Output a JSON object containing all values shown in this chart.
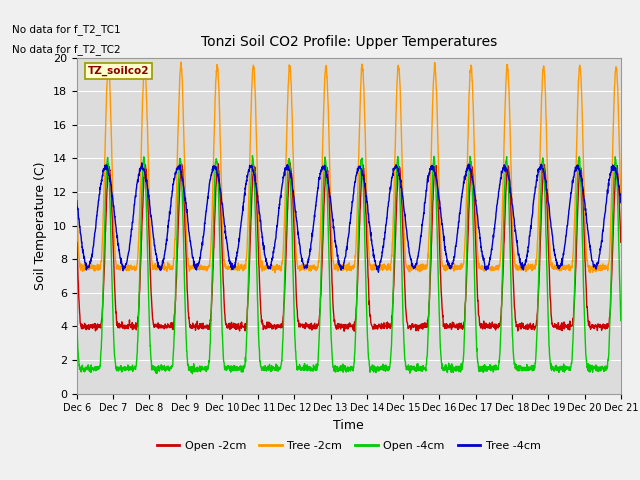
{
  "title": "Tonzi Soil CO2 Profile: Upper Temperatures",
  "xlabel": "Time",
  "ylabel": "Soil Temperature (C)",
  "ylim": [
    0,
    20
  ],
  "legend_label": "TZ_soilco2",
  "no_data_texts": [
    "No data for f_T2_TC1",
    "No data for f_T2_TC2"
  ],
  "tick_labels": [
    "Dec 6",
    "Dec 7",
    "Dec 8",
    "Dec 9",
    "Dec 10",
    "Dec 11",
    "Dec 12",
    "Dec 13",
    "Dec 14",
    "Dec 15",
    "Dec 16",
    "Dec 17",
    "Dec 18",
    "Dec 19",
    "Dec 20",
    "Dec 21"
  ],
  "line_labels": [
    "Open -2cm",
    "Tree -2cm",
    "Open -4cm",
    "Tree -4cm"
  ],
  "line_colors": [
    "#cc0000",
    "#ff9900",
    "#00cc00",
    "#0000cc"
  ],
  "background_color": "#dcdcdc",
  "fig_color": "#f0f0f0",
  "grid_color": "#ffffff"
}
